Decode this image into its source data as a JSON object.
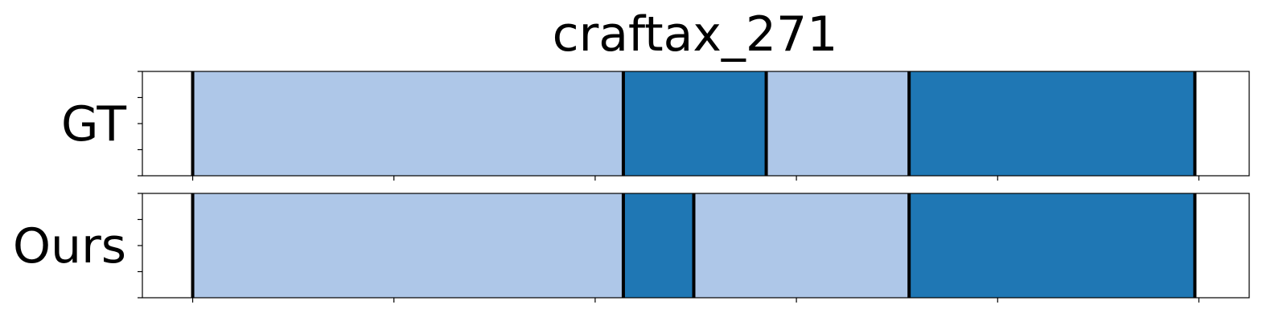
{
  "chart_data": {
    "type": "segmentation",
    "title": "craftax_271",
    "rows": [
      {
        "label": "GT",
        "segments": [
          {
            "start": 25,
            "end": 239,
            "class": "light"
          },
          {
            "start": 239,
            "end": 310,
            "class": "dark"
          },
          {
            "start": 310,
            "end": 381,
            "class": "light"
          },
          {
            "start": 381,
            "end": 523,
            "class": "dark"
          }
        ]
      },
      {
        "label": "Ours",
        "segments": [
          {
            "start": 25,
            "end": 239,
            "class": "light"
          },
          {
            "start": 239,
            "end": 274,
            "class": "dark"
          },
          {
            "start": 274,
            "end": 381,
            "class": "light"
          },
          {
            "start": 381,
            "end": 523,
            "class": "dark"
          }
        ]
      }
    ],
    "boundaries": {
      "GT": [
        25,
        239,
        310,
        381,
        523
      ],
      "Ours": [
        25,
        239,
        274,
        381,
        523
      ]
    },
    "xlim": [
      0,
      550
    ],
    "xticks": [
      25,
      125,
      225,
      325,
      425,
      525
    ],
    "show_x_tick_labels": false,
    "show_y_tick_labels": false,
    "colors": {
      "light": "#aec7e8",
      "dark": "#1f77b4",
      "boundary": "#000000"
    }
  }
}
